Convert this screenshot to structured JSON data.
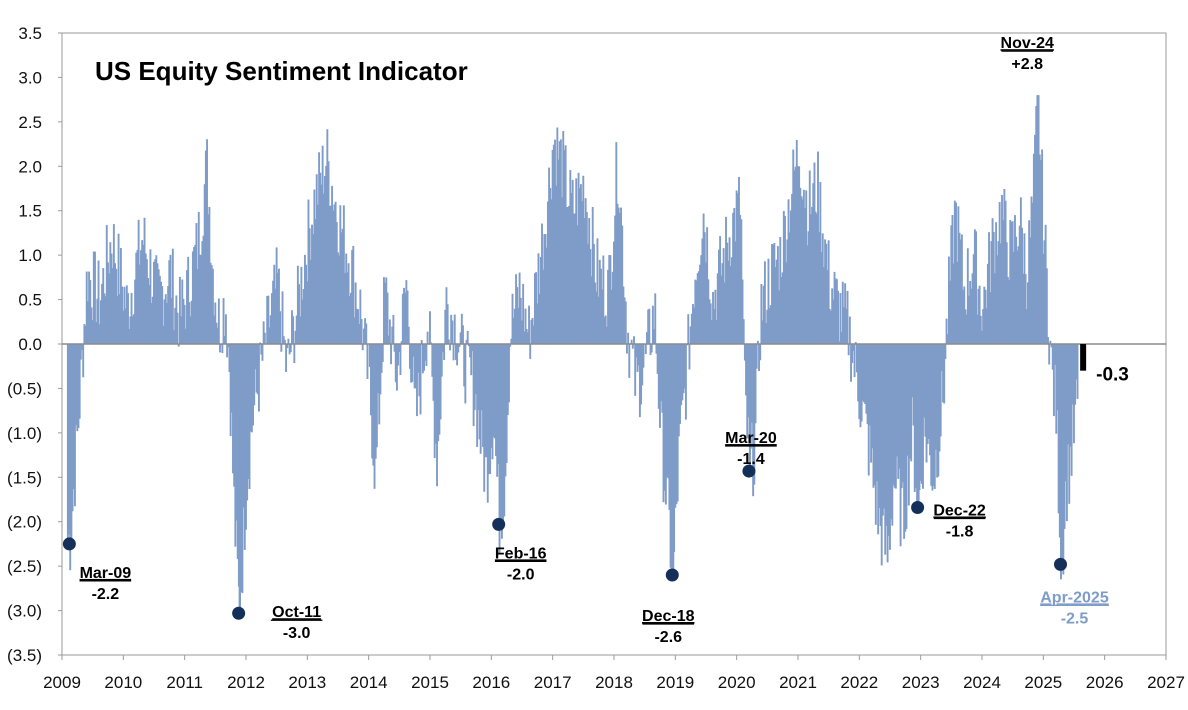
{
  "chart_data": {
    "type": "bar",
    "title": "US Equity Sentiment Indicator",
    "xlabel": "",
    "ylabel": "",
    "ylim": [
      -3.5,
      3.5
    ],
    "xlim": [
      2009,
      2027
    ],
    "grid": false,
    "yticks": [
      3.5,
      3.0,
      2.5,
      2.0,
      1.5,
      1.0,
      0.5,
      0.0,
      -0.5,
      -1.0,
      -1.5,
      -2.0,
      -2.5,
      -3.0,
      -3.5
    ],
    "ytick_labels": [
      "3.5",
      "3.0",
      "2.5",
      "2.0",
      "1.5",
      "1.0",
      "0.5",
      "0.0",
      "(0.5)",
      "(1.0)",
      "(1.5)",
      "(2.0)",
      "(2.5)",
      "(3.0)",
      "(3.5)"
    ],
    "xticks": [
      2009,
      2010,
      2011,
      2012,
      2013,
      2014,
      2015,
      2016,
      2017,
      2018,
      2019,
      2020,
      2021,
      2022,
      2023,
      2024,
      2025,
      2026,
      2027
    ],
    "xtick_labels": [
      "2009",
      "2010",
      "2011",
      "2012",
      "2013",
      "2014",
      "2015",
      "2016",
      "2017",
      "2018",
      "2019",
      "2020",
      "2021",
      "2022",
      "2023",
      "2024",
      "2025",
      "2026",
      "2027"
    ],
    "series_color": "#7f9cc8",
    "latest_color": "#000000",
    "marker_color": "#14305a",
    "anchors": [
      [
        2009.12,
        -2.2
      ],
      [
        2009.25,
        -0.9
      ],
      [
        2009.4,
        0.8
      ],
      [
        2009.6,
        0.5
      ],
      [
        2009.8,
        1.2
      ],
      [
        2010.05,
        0.4
      ],
      [
        2010.3,
        1.2
      ],
      [
        2010.55,
        0.5
      ],
      [
        2010.75,
        0.8
      ],
      [
        2010.9,
        0.3
      ],
      [
        2011.0,
        0.5
      ],
      [
        2011.2,
        1.1
      ],
      [
        2011.35,
        2.0
      ],
      [
        2011.45,
        0.8
      ],
      [
        2011.55,
        0.2
      ],
      [
        2011.65,
        0.5
      ],
      [
        2011.72,
        -0.3
      ],
      [
        2011.8,
        -2.0
      ],
      [
        2011.88,
        -3.0
      ],
      [
        2012.0,
        -1.5
      ],
      [
        2012.1,
        -0.8
      ],
      [
        2012.2,
        -0.4
      ],
      [
        2012.35,
        0.2
      ],
      [
        2012.5,
        0.7
      ],
      [
        2012.65,
        -0.3
      ],
      [
        2012.8,
        0.3
      ],
      [
        2012.95,
        1.0
      ],
      [
        2013.1,
        1.6
      ],
      [
        2013.3,
        2.1
      ],
      [
        2013.5,
        1.4
      ],
      [
        2013.7,
        0.9
      ],
      [
        2013.85,
        0.4
      ],
      [
        2014.0,
        -0.5
      ],
      [
        2014.1,
        -1.5
      ],
      [
        2014.25,
        0.6
      ],
      [
        2014.45,
        -0.4
      ],
      [
        2014.6,
        0.7
      ],
      [
        2014.75,
        -0.9
      ],
      [
        2014.95,
        0.3
      ],
      [
        2015.1,
        -1.3
      ],
      [
        2015.25,
        0.5
      ],
      [
        2015.4,
        0.2
      ],
      [
        2015.55,
        -0.2
      ],
      [
        2015.7,
        -0.5
      ],
      [
        2015.8,
        -1.0
      ],
      [
        2015.9,
        -1.5
      ],
      [
        2016.02,
        -0.8
      ],
      [
        2016.12,
        -2.0
      ],
      [
        2016.2,
        -1.6
      ],
      [
        2016.3,
        0.2
      ],
      [
        2016.45,
        0.6
      ],
      [
        2016.6,
        0.1
      ],
      [
        2016.75,
        0.8
      ],
      [
        2016.9,
        1.6
      ],
      [
        2017.0,
        2.3
      ],
      [
        2017.15,
        2.0
      ],
      [
        2017.3,
        1.5
      ],
      [
        2017.5,
        1.8
      ],
      [
        2017.7,
        0.8
      ],
      [
        2017.9,
        0.6
      ],
      [
        2018.05,
        2.1
      ],
      [
        2018.2,
        0.2
      ],
      [
        2018.35,
        -0.5
      ],
      [
        2018.5,
        -0.2
      ],
      [
        2018.65,
        0.4
      ],
      [
        2018.75,
        -1.0
      ],
      [
        2018.85,
        -1.8
      ],
      [
        2018.95,
        -2.6
      ],
      [
        2019.05,
        -1.2
      ],
      [
        2019.15,
        -0.5
      ],
      [
        2019.3,
        0.8
      ],
      [
        2019.45,
        1.5
      ],
      [
        2019.6,
        0.5
      ],
      [
        2019.75,
        0.9
      ],
      [
        2019.9,
        1.3
      ],
      [
        2020.05,
        1.6
      ],
      [
        2020.12,
        -0.6
      ],
      [
        2020.2,
        -1.4
      ],
      [
        2020.28,
        -1.2
      ],
      [
        2020.38,
        0.4
      ],
      [
        2020.55,
        0.8
      ],
      [
        2020.7,
        1.0
      ],
      [
        2020.85,
        1.6
      ],
      [
        2021.0,
        2.2
      ],
      [
        2021.15,
        1.5
      ],
      [
        2021.3,
        1.8
      ],
      [
        2021.5,
        0.7
      ],
      [
        2021.65,
        0.4
      ],
      [
        2021.8,
        0.2
      ],
      [
        2021.9,
        -0.2
      ],
      [
        2022.0,
        -0.6
      ],
      [
        2022.15,
        -1.2
      ],
      [
        2022.3,
        -2.0
      ],
      [
        2022.45,
        -2.4
      ],
      [
        2022.55,
        -1.5
      ],
      [
        2022.7,
        -2.0
      ],
      [
        2022.85,
        -1.0
      ],
      [
        2022.95,
        -1.8
      ],
      [
        2023.05,
        -1.0
      ],
      [
        2023.2,
        -1.5
      ],
      [
        2023.35,
        -0.6
      ],
      [
        2023.45,
        0.6
      ],
      [
        2023.55,
        1.5
      ],
      [
        2023.7,
        0.6
      ],
      [
        2023.85,
        1.0
      ],
      [
        2024.0,
        0.4
      ],
      [
        2024.15,
        1.1
      ],
      [
        2024.3,
        1.5
      ],
      [
        2024.45,
        1.0
      ],
      [
        2024.6,
        1.4
      ],
      [
        2024.72,
        0.8
      ],
      [
        2024.82,
        1.6
      ],
      [
        2024.9,
        2.8
      ],
      [
        2024.98,
        1.5
      ],
      [
        2025.05,
        0.6
      ],
      [
        2025.12,
        -0.3
      ],
      [
        2025.2,
        -0.8
      ],
      [
        2025.28,
        -2.5
      ],
      [
        2025.36,
        -1.6
      ],
      [
        2025.45,
        -1.2
      ],
      [
        2025.55,
        -0.6
      ]
    ],
    "latest": {
      "date": 2025.6,
      "value": -0.3,
      "label": "-0.3"
    },
    "annotations": [
      {
        "id": "mar-09",
        "date": "Mar-09",
        "value": "-2.2",
        "x": 2009.12,
        "y": -2.25,
        "color": "#000000"
      },
      {
        "id": "oct-11",
        "date": "Oct-11",
        "value": "-3.0",
        "x": 2011.88,
        "y": -3.03,
        "color": "#000000"
      },
      {
        "id": "feb-16",
        "date": "Feb-16",
        "value": "-2.0",
        "x": 2016.12,
        "y": -2.03,
        "color": "#000000"
      },
      {
        "id": "dec-18",
        "date": "Dec-18",
        "value": "-2.6",
        "x": 2018.95,
        "y": -2.6,
        "color": "#000000"
      },
      {
        "id": "mar-20",
        "date": "Mar-20",
        "value": "-1.4",
        "x": 2020.2,
        "y": -1.43,
        "color": "#000000"
      },
      {
        "id": "dec-22",
        "date": "Dec-22",
        "value": "-1.8",
        "x": 2022.95,
        "y": -1.84,
        "color": "#000000"
      },
      {
        "id": "apr-2025",
        "date": "Apr-2025",
        "value": "-2.5",
        "x": 2025.28,
        "y": -2.48,
        "color": "#7f9cc8"
      },
      {
        "id": "nov-24",
        "date": "Nov-24",
        "value": "+2.8",
        "x": 2024.9,
        "y": 2.8,
        "color": "#000000",
        "marker": false
      }
    ]
  }
}
